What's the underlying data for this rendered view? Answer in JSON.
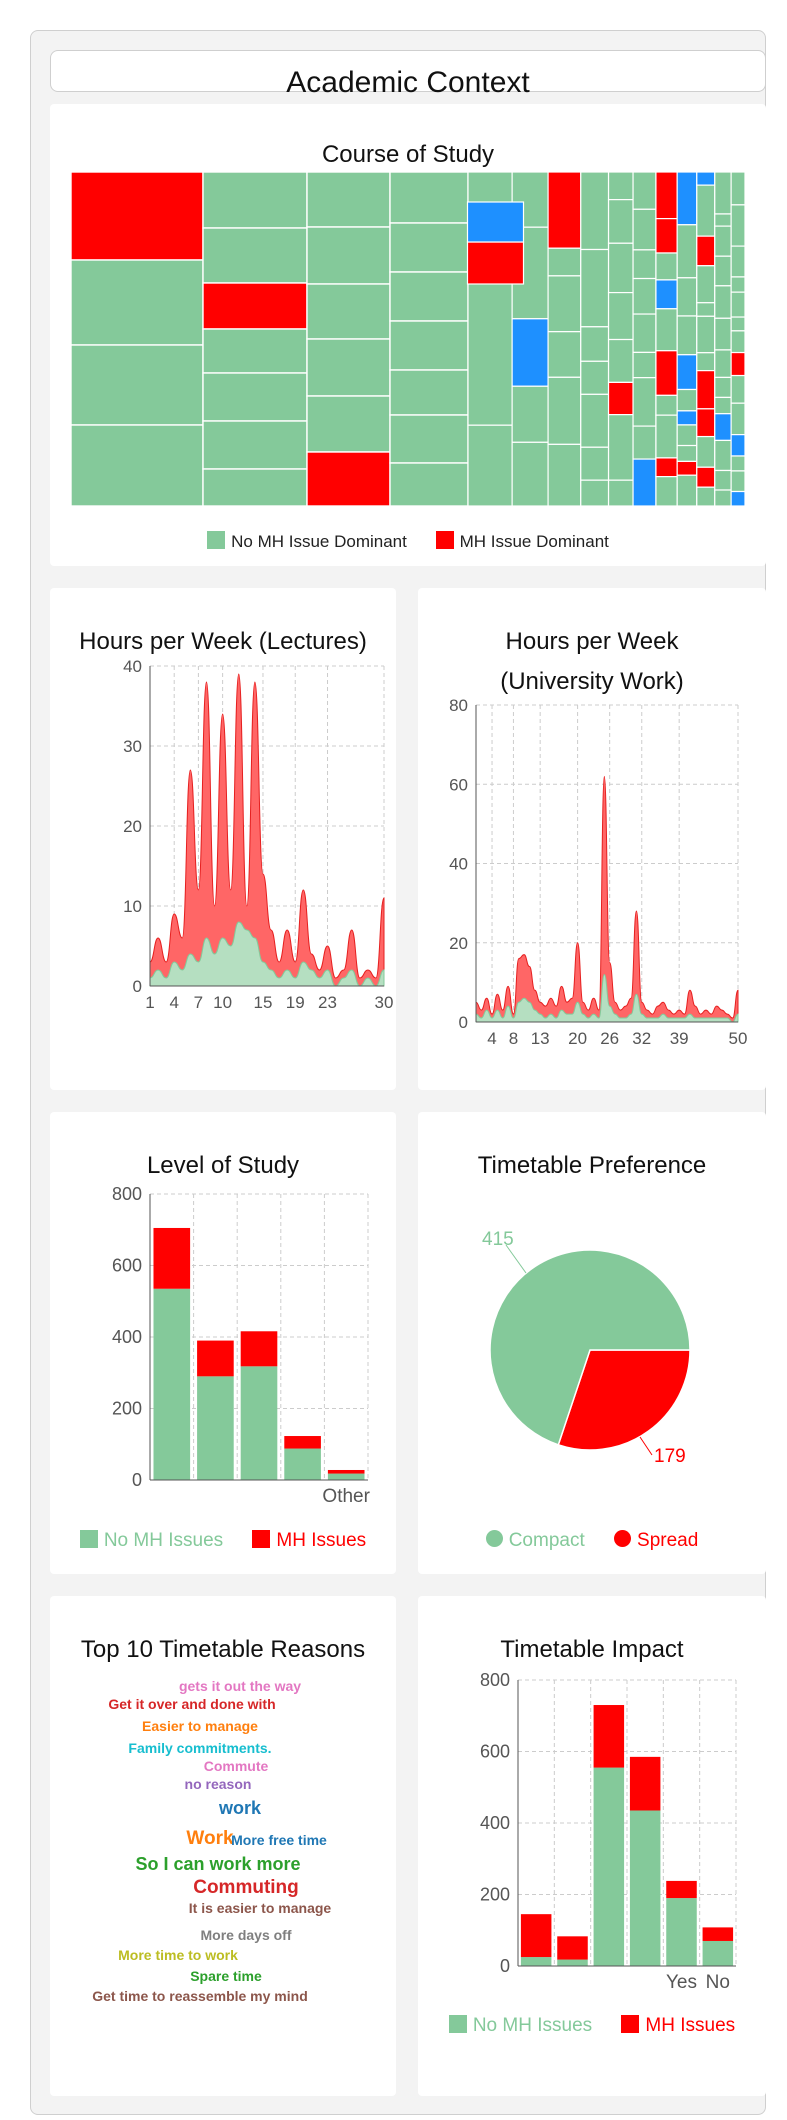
{
  "page": {
    "title": "Academic Context"
  },
  "colors": {
    "green": "#84c99a",
    "red": "#ff0000",
    "blue": "#1e90ff",
    "grid": "#cccccc",
    "axis": "#555555"
  },
  "chart_data": [
    {
      "id": "course",
      "type": "treemap",
      "title": "Course of Study",
      "legend": [
        "No MH Issue Dominant",
        "MH Issue Dominant"
      ]
    },
    {
      "id": "lectures",
      "type": "area",
      "title": "Hours per Week (Lectures)",
      "xticks": [
        1,
        4,
        7,
        10,
        15,
        19,
        23,
        30
      ],
      "ylim": [
        0,
        40
      ],
      "yticks": [
        0,
        10,
        20,
        30,
        40
      ],
      "series": [
        {
          "name": "MH Issues",
          "values": [
            3,
            6,
            3,
            9,
            6,
            27,
            12,
            38,
            10,
            34,
            12,
            39,
            10,
            38,
            14,
            7,
            3,
            7,
            3,
            12,
            4,
            2,
            5,
            1,
            2,
            7,
            1,
            2,
            1,
            11
          ]
        },
        {
          "name": "No MH Issues",
          "values": [
            1,
            2,
            1,
            3,
            2,
            4,
            3,
            6,
            4,
            6,
            5,
            8,
            7,
            6,
            3,
            2,
            1,
            2,
            1,
            3,
            2,
            1,
            2,
            0,
            1,
            2,
            0,
            1,
            0,
            2
          ]
        }
      ]
    },
    {
      "id": "uniwork",
      "type": "area",
      "title": "Hours per Week",
      "title2": "(University Work)",
      "xticks": [
        4,
        8,
        13,
        20,
        26,
        32,
        39,
        50
      ],
      "ylim": [
        0,
        80
      ],
      "yticks": [
        0,
        20,
        40,
        60,
        80
      ],
      "series": [
        {
          "name": "MH Issues",
          "values": [
            5,
            3,
            6,
            2,
            7,
            3,
            9,
            2,
            16,
            17,
            14,
            8,
            5,
            4,
            6,
            4,
            9,
            5,
            6,
            20,
            5,
            3,
            6,
            3,
            62,
            15,
            5,
            3,
            4,
            6,
            28,
            5,
            3,
            2,
            4,
            5,
            3,
            2,
            3,
            2,
            8,
            4,
            2,
            3,
            2,
            4,
            3,
            2,
            1,
            8
          ]
        },
        {
          "name": "No MH Issues",
          "values": [
            2,
            1,
            3,
            1,
            3,
            1,
            4,
            1,
            5,
            6,
            5,
            3,
            2,
            1,
            2,
            1,
            3,
            2,
            2,
            5,
            2,
            1,
            2,
            1,
            12,
            4,
            2,
            1,
            1,
            2,
            7,
            2,
            1,
            1,
            1,
            2,
            1,
            1,
            1,
            1,
            2,
            1,
            1,
            1,
            1,
            1,
            1,
            1,
            0,
            2
          ]
        }
      ]
    },
    {
      "id": "level",
      "type": "bar",
      "title": "Level of Study",
      "categories": [
        "",
        "",
        "",
        "",
        "Other"
      ],
      "ylim": [
        0,
        800
      ],
      "yticks": [
        0,
        200,
        400,
        600,
        800
      ],
      "series": [
        {
          "name": "No MH Issues",
          "values": [
            535,
            290,
            318,
            88,
            18
          ]
        },
        {
          "name": "MH Issues",
          "values": [
            170,
            100,
            98,
            35,
            10
          ]
        }
      ],
      "legend": [
        "No MH Issues",
        "MH Issues"
      ]
    },
    {
      "id": "preference",
      "type": "pie",
      "title": "Timetable Preference",
      "slices": [
        {
          "name": "Compact",
          "value": 415
        },
        {
          "name": "Spread",
          "value": 179
        }
      ],
      "labels": [
        "415",
        "179"
      ]
    },
    {
      "id": "reasons",
      "type": "wordcloud",
      "title": "Top 10 Timetable Reasons",
      "words": [
        {
          "text": "gets it out the way",
          "color": "#e377c2"
        },
        {
          "text": "Get it over and done with",
          "color": "#d62728"
        },
        {
          "text": "Easier to manage",
          "color": "#ff7f0e"
        },
        {
          "text": "Family commitments.",
          "color": "#17becf"
        },
        {
          "text": "Commute",
          "color": "#e377c2"
        },
        {
          "text": "no reason",
          "color": "#9467bd"
        },
        {
          "text": "work",
          "color": "#1f77b4"
        },
        {
          "text": "Work",
          "color": "#ff7f0e"
        },
        {
          "text": "More free time",
          "color": "#1f77b4"
        },
        {
          "text": "So I can work more",
          "color": "#2ca02c"
        },
        {
          "text": "Commuting",
          "color": "#d62728"
        },
        {
          "text": "It is easier to manage",
          "color": "#8c564b"
        },
        {
          "text": "More days off",
          "color": "#7f7f7f"
        },
        {
          "text": "More time to work",
          "color": "#bcbd22"
        },
        {
          "text": "Spare time",
          "color": "#2ca02c"
        },
        {
          "text": "Get time to reassemble my mind",
          "color": "#8c564b"
        }
      ]
    },
    {
      "id": "impact",
      "type": "bar",
      "title": "Timetable Impact",
      "categories": [
        "",
        "",
        "",
        "",
        "Yes",
        "No"
      ],
      "ylim": [
        0,
        800
      ],
      "yticks": [
        0,
        200,
        400,
        600,
        800
      ],
      "series": [
        {
          "name": "No MH Issues",
          "values": [
            25,
            18,
            555,
            435,
            190,
            70
          ]
        },
        {
          "name": "MH Issues",
          "values": [
            120,
            65,
            175,
            150,
            48,
            38
          ]
        }
      ],
      "legend": [
        "No MH Issues",
        "MH Issues"
      ]
    }
  ]
}
